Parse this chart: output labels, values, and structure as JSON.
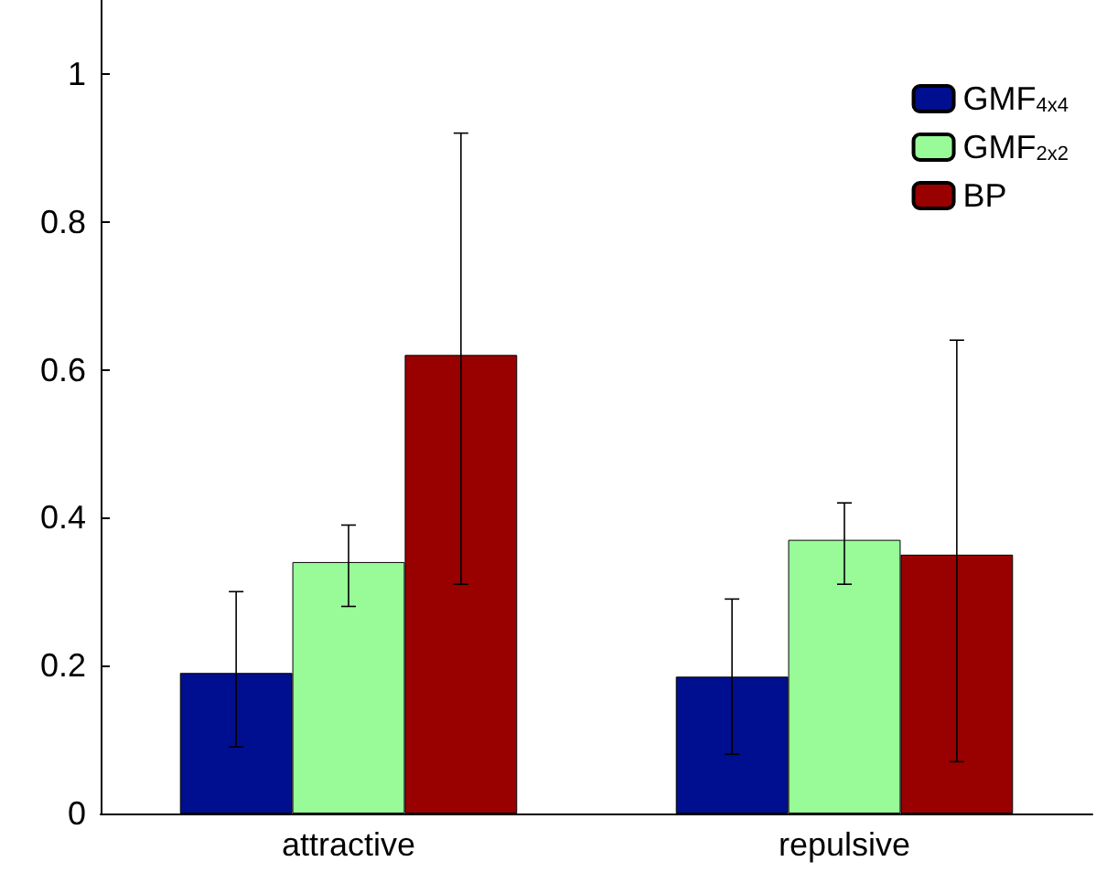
{
  "chart_data": {
    "type": "bar",
    "categories": [
      "attractive",
      "repulsive"
    ],
    "series": [
      {
        "name": "GMF$_{4x4}$",
        "color": "#000f8f",
        "values": [
          0.19,
          0.185
        ],
        "errors": [
          [
            0.09,
            0.3
          ],
          [
            0.08,
            0.29
          ]
        ]
      },
      {
        "name": "GMF$_{2x2}$",
        "color": "#98fb98",
        "values": [
          0.34,
          0.37
        ],
        "errors": [
          [
            0.28,
            0.39
          ],
          [
            0.31,
            0.42
          ]
        ]
      },
      {
        "name": "BP",
        "color": "#990000",
        "values": [
          0.62,
          0.35
        ],
        "errors": [
          [
            0.31,
            0.92
          ],
          [
            0.07,
            0.64
          ]
        ]
      }
    ],
    "ylim": [
      0,
      1.1
    ],
    "yticks": [
      0,
      0.2,
      0.4,
      0.6,
      0.8,
      1
    ],
    "grid": false,
    "legend": "top right"
  }
}
